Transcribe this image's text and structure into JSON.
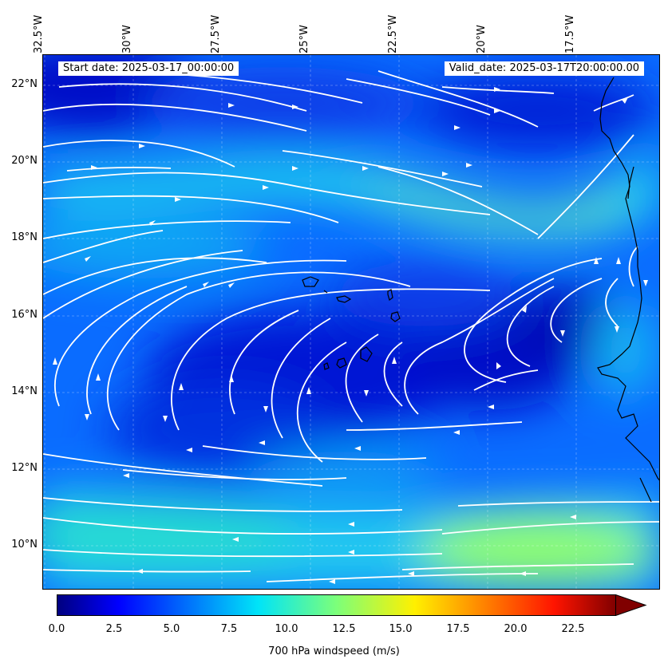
{
  "header": {
    "start_date": "Start date: 2025-03-17_00:00:00",
    "valid_date": "Valid_date: 2025-03-17T20:00:00.00"
  },
  "axes": {
    "lon_labels": [
      "32.5°W",
      "30°W",
      "27.5°W",
      "25°W",
      "22.5°W",
      "20°W",
      "17.5°W"
    ],
    "lat_labels": [
      "22°N",
      "20°N",
      "18°N",
      "16°N",
      "14°N",
      "12°N",
      "10°N"
    ]
  },
  "map": {
    "region": "Eastern tropical Atlantic, Cape Verde islands and West African coast",
    "field": "700 hPa windspeed",
    "overlay": "white streamlines",
    "coastline_color": "#000000",
    "streamline_color": "#ffffff"
  },
  "colorbar": {
    "label": "700 hPa windspeed (m/s)",
    "ticks": [
      "0.0",
      "2.5",
      "5.0",
      "7.5",
      "10.0",
      "12.5",
      "15.0",
      "17.5",
      "20.0",
      "22.5"
    ],
    "colormap": "jet",
    "extend": "max"
  }
}
